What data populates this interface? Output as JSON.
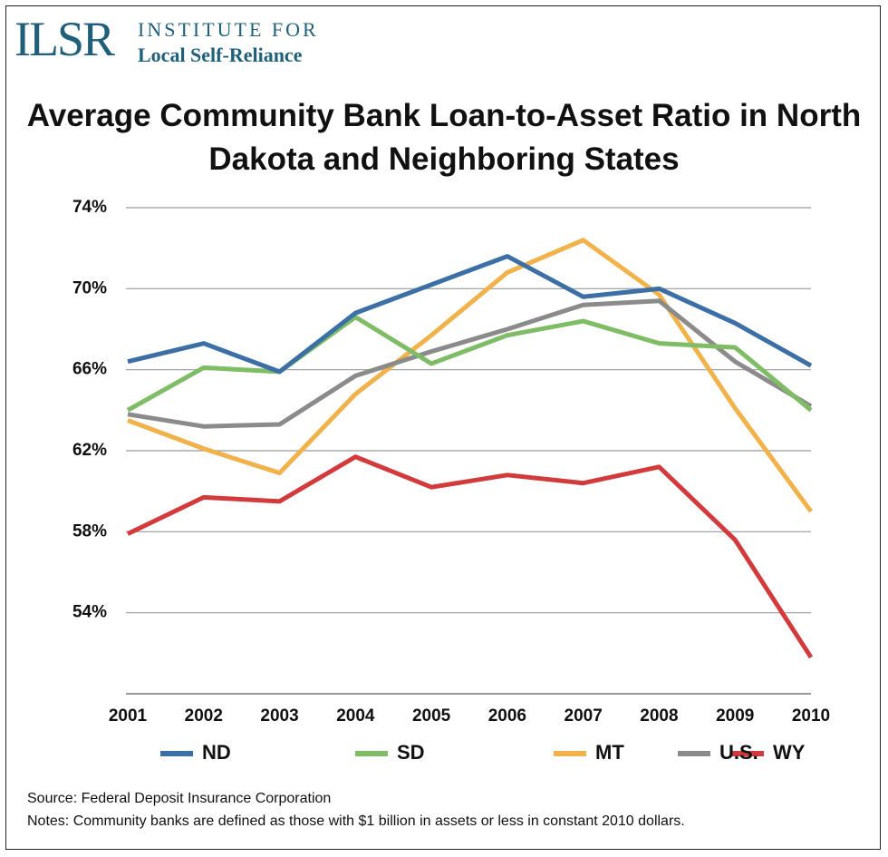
{
  "logo": {
    "mark": "ILSR",
    "line1": "INSTITUTE FOR",
    "line2": "Local Self-Reliance"
  },
  "chart_data": {
    "type": "line",
    "title": "Average Community Bank Loan-to-Asset Ratio in North Dakota and Neighboring States",
    "categories": [
      "2001",
      "2002",
      "2003",
      "2004",
      "2005",
      "2006",
      "2007",
      "2008",
      "2009",
      "2010"
    ],
    "series": [
      {
        "name": "ND",
        "color": "#3b6fa6",
        "values": [
          66.4,
          67.3,
          65.9,
          68.8,
          70.2,
          71.6,
          69.6,
          70.0,
          68.3,
          66.2
        ]
      },
      {
        "name": "SD",
        "color": "#7ebd66",
        "values": [
          64.0,
          66.1,
          65.9,
          68.6,
          66.3,
          67.7,
          68.4,
          67.3,
          67.1,
          64.0
        ]
      },
      {
        "name": "MT",
        "color": "#f1b24b",
        "values": [
          63.5,
          62.1,
          60.9,
          64.8,
          67.7,
          70.8,
          72.4,
          69.7,
          64.1,
          59.0
        ]
      },
      {
        "name": "WY",
        "color": "#d23a3c",
        "values": [
          57.9,
          59.7,
          59.5,
          61.7,
          60.2,
          60.8,
          60.4,
          61.2,
          57.6,
          51.8
        ]
      },
      {
        "name": "U.S.",
        "color": "#8b8b8b",
        "values": [
          63.8,
          63.2,
          63.3,
          65.7,
          66.9,
          68.0,
          69.2,
          69.4,
          66.4,
          64.2
        ]
      }
    ],
    "ylim": [
      50,
      74
    ],
    "yticks": [
      {
        "value": 54,
        "label": "54%"
      },
      {
        "value": 58,
        "label": "58%"
      },
      {
        "value": 62,
        "label": "62%"
      },
      {
        "value": 66,
        "label": "66%"
      },
      {
        "value": 70,
        "label": "70%"
      },
      {
        "value": 74,
        "label": "74%"
      }
    ],
    "grid": true,
    "legend": "bottom",
    "source": "Source: Federal Deposit Insurance Corporation",
    "notes": "Notes: Community banks are defined as those with $1 billion in assets or less in constant 2010 dollars."
  }
}
